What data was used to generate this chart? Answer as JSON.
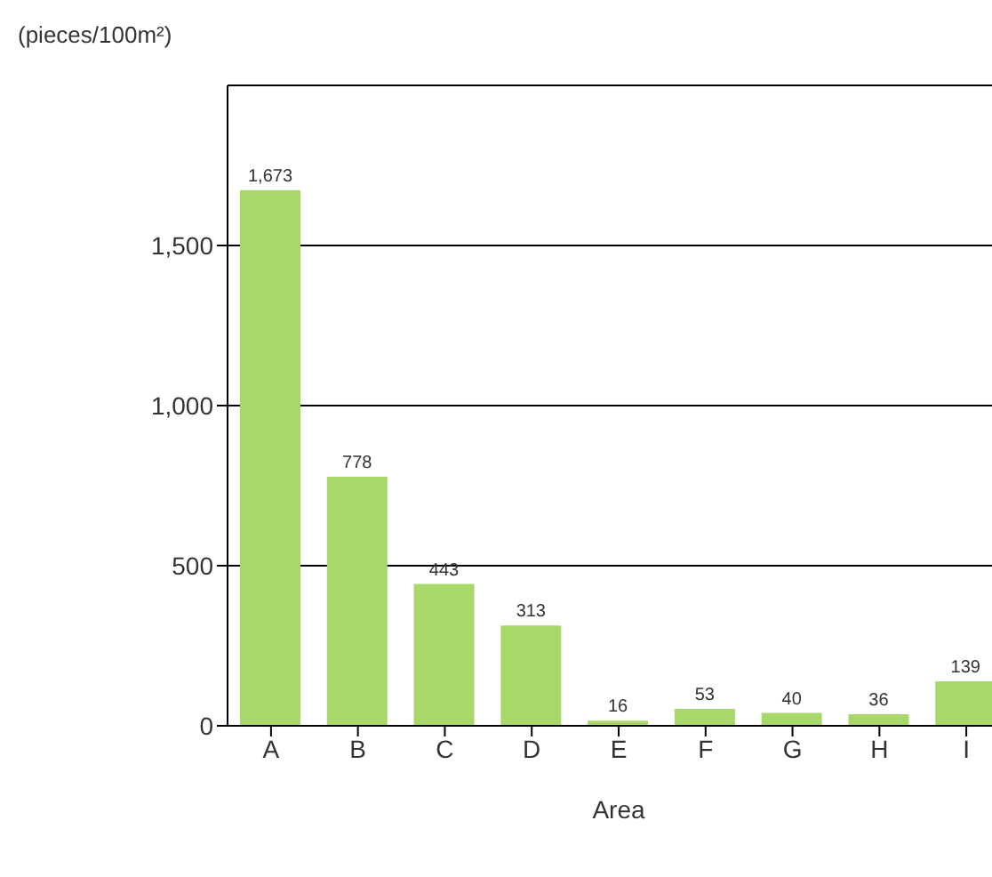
{
  "chart_data": {
    "type": "bar",
    "ylabel": "(pieces/100m²)",
    "xlabel": "Area",
    "categories": [
      "A",
      "B",
      "C",
      "D",
      "E",
      "F",
      "G",
      "H",
      "I"
    ],
    "values": [
      1673,
      778,
      443,
      313,
      16,
      53,
      40,
      36,
      139
    ],
    "value_labels": [
      "1,673",
      "778",
      "443",
      "313",
      "16",
      "53",
      "40",
      "36",
      "139"
    ],
    "color": "#a8d86a",
    "ylim": [
      0,
      2000
    ],
    "yticks": [
      0,
      500,
      {
        "value": 1000,
        "label": "1,000"
      },
      {
        "value": 1500,
        "label": "1,500"
      }
    ],
    "grid": "y"
  }
}
